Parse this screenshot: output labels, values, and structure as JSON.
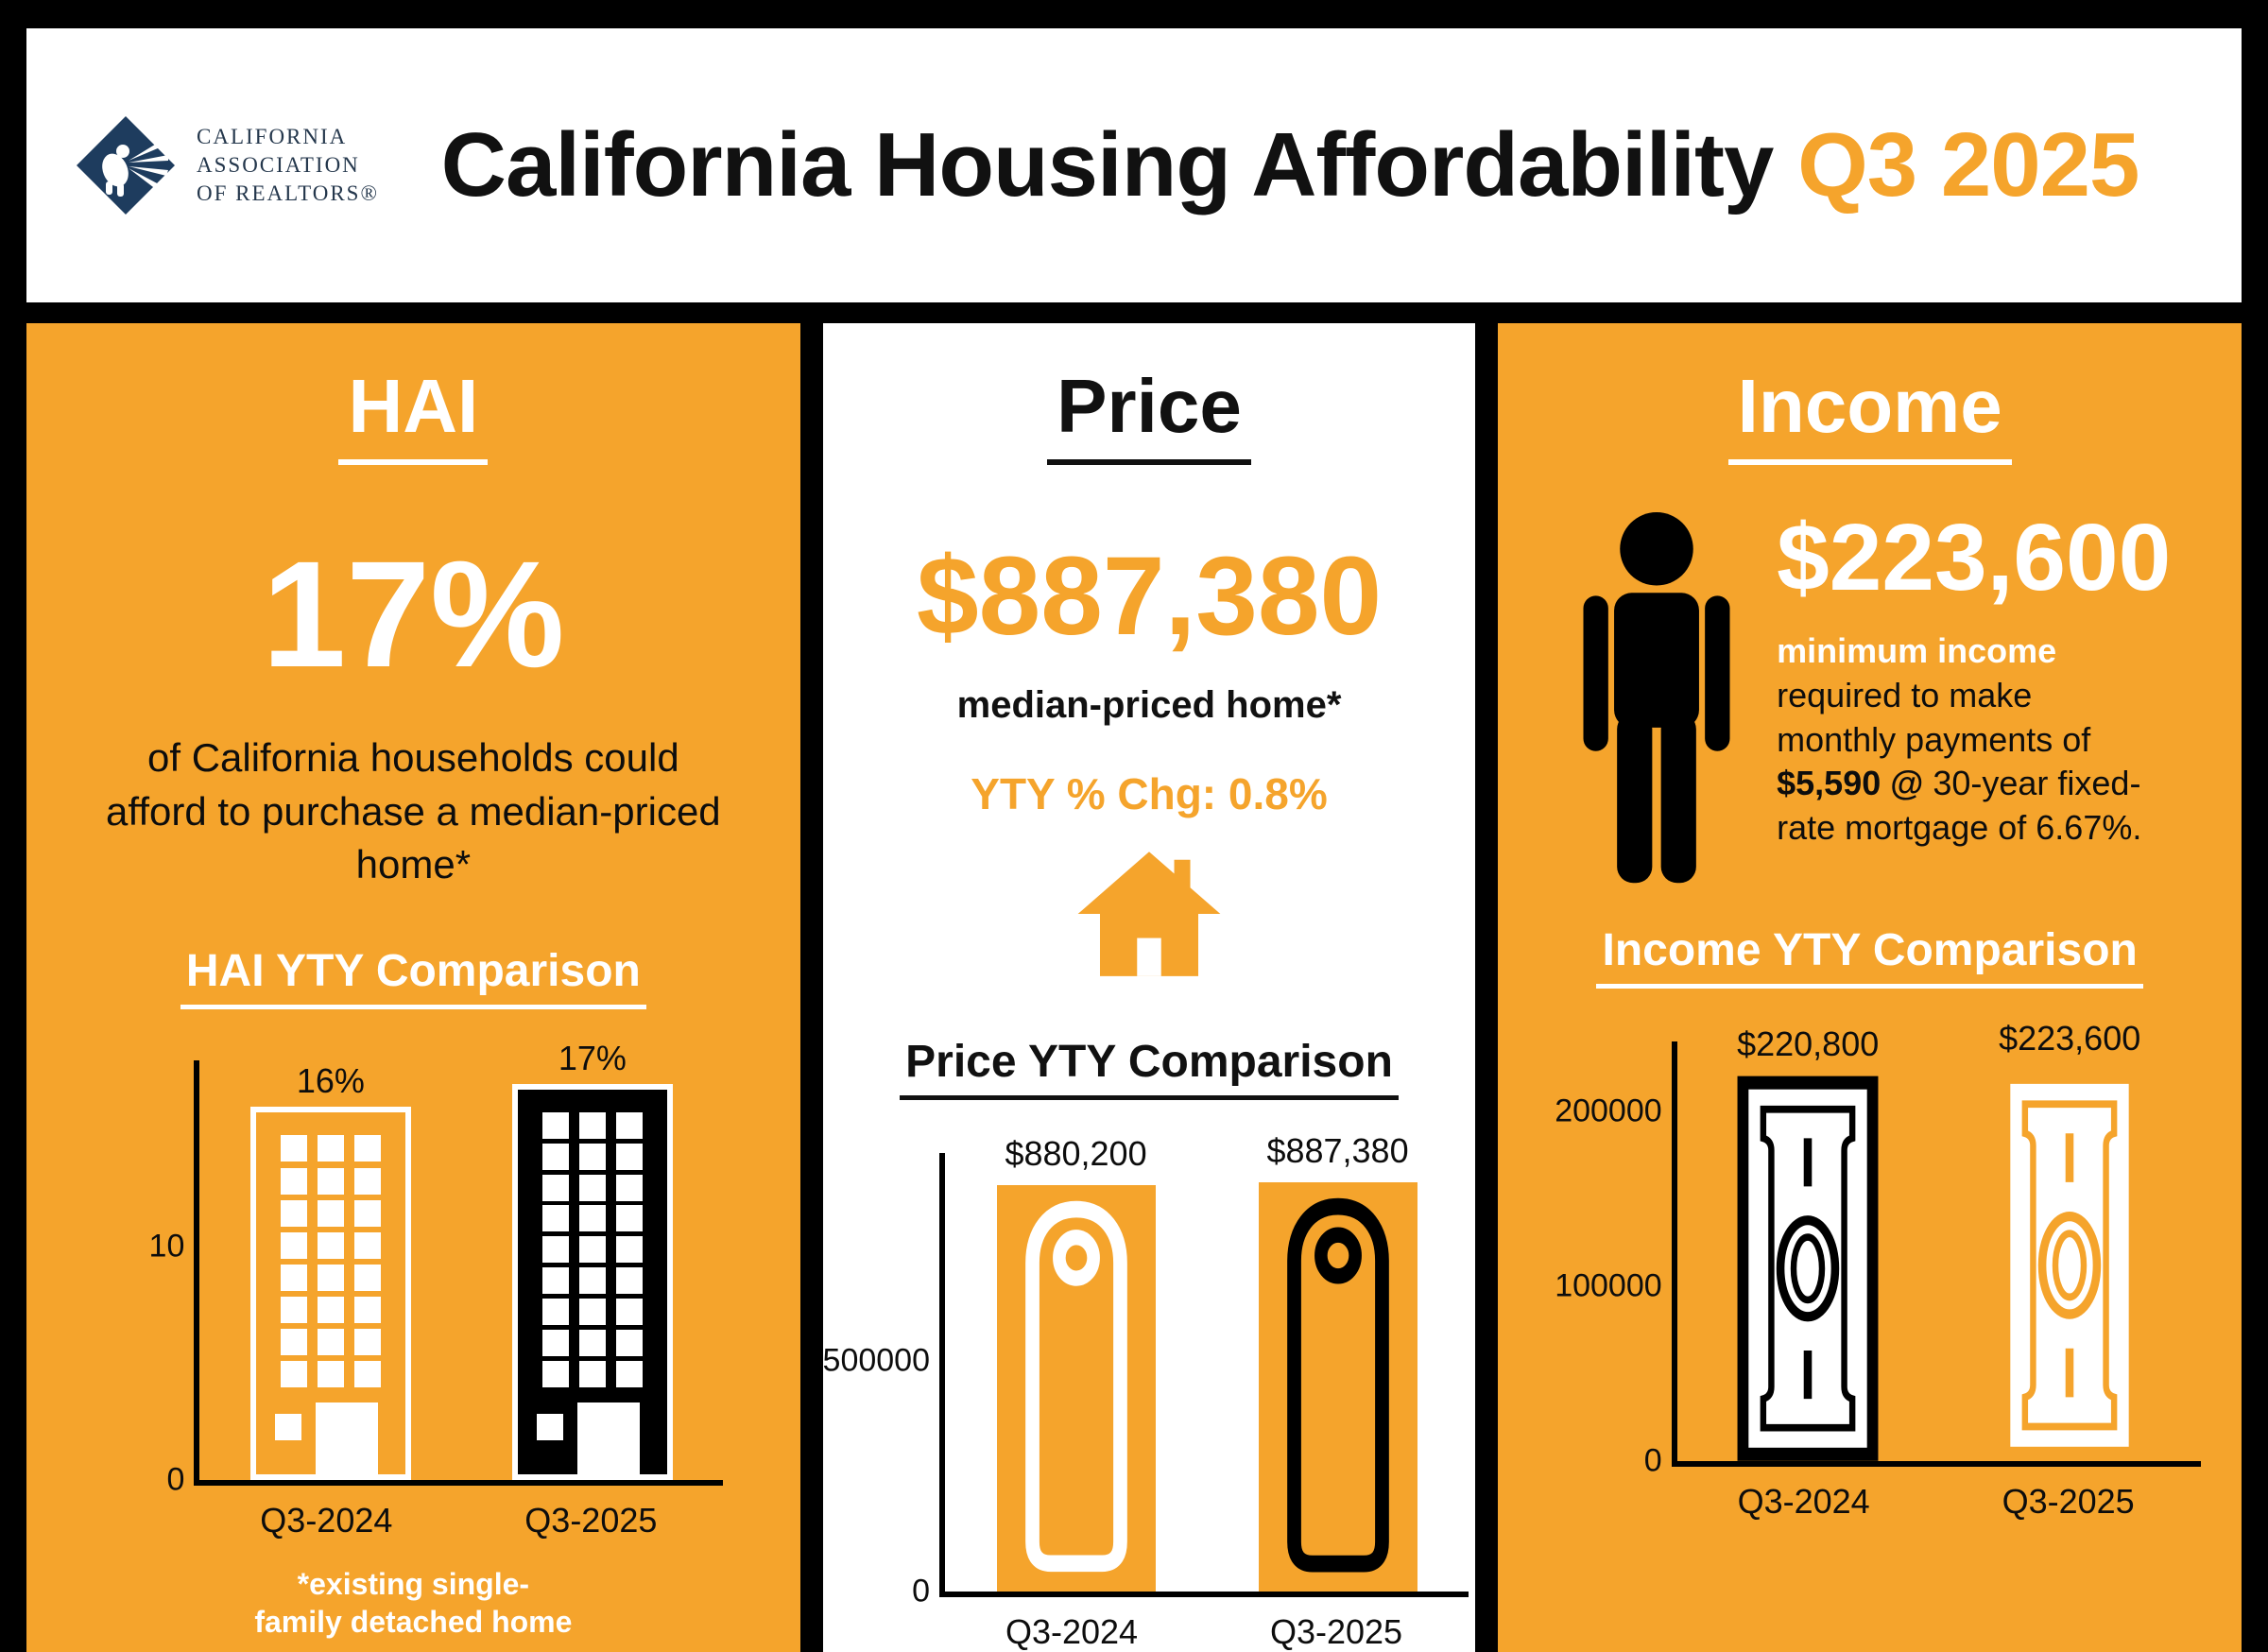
{
  "colors": {
    "orange": "#F5A42C",
    "navy": "#1E3C5E",
    "black": "#000000",
    "white": "#FFFFFF"
  },
  "header": {
    "logo_line1": "CALIFORNIA",
    "logo_line2": "ASSOCIATION",
    "logo_line3": "OF REALTORS®",
    "title": "California Housing Affordability",
    "title_highlight": "Q3 2025"
  },
  "panels": {
    "hai": {
      "heading": "HAI",
      "value": "17%",
      "description": "of California households could afford to purchase a median-priced home*",
      "footnote_line1": "*existing single-",
      "footnote_line2": "family detached home"
    },
    "price": {
      "heading": "Price",
      "value": "$887,380",
      "subtitle": "median-priced home*",
      "yty_change": "YTY % Chg: 0.8%"
    },
    "income": {
      "heading": "Income",
      "value": "$223,600",
      "desc_seg1": "minimum income",
      "desc_seg2": "required to make monthly payments of ",
      "desc_seg3": "$5,590 @",
      "desc_seg4": " 30-year fixed-rate mortgage of 6.67%."
    }
  },
  "chart_data": [
    {
      "type": "bar",
      "title": "HAI YTY Comparison",
      "categories": [
        "Q3-2024",
        "Q3-2025"
      ],
      "values": [
        16,
        17
      ],
      "value_labels": [
        "16%",
        "17%"
      ],
      "yticks": [
        0,
        10
      ],
      "ylim": [
        0,
        18
      ],
      "xlabel": "",
      "ylabel": "",
      "grid": false,
      "legend": "none",
      "bar_style": "building icons: Q3-2024 orange with white windows, Q3-2025 black with white windows"
    },
    {
      "type": "bar",
      "title": "Price YTY Comparison",
      "categories": [
        "Q3-2024",
        "Q3-2025"
      ],
      "values": [
        880200,
        887380
      ],
      "value_labels": [
        "$880,200",
        "$887,380"
      ],
      "yticks": [
        0,
        500000
      ],
      "ylim": [
        0,
        950000
      ],
      "xlabel": "",
      "ylabel": "",
      "grid": false,
      "legend": "none",
      "bar_style": "orange bars containing price-tag outline icons: Q3-2024 white tag, Q3-2025 black tag"
    },
    {
      "type": "bar",
      "title": "Income YTY Comparison",
      "categories": [
        "Q3-2024",
        "Q3-2025"
      ],
      "values": [
        220800,
        223600
      ],
      "value_labels": [
        "$220,800",
        "$223,600"
      ],
      "yticks": [
        0,
        100000,
        200000
      ],
      "ylim": [
        0,
        240000
      ],
      "xlabel": "",
      "ylabel": "",
      "grid": false,
      "legend": "none",
      "bar_style": "vertical dollar-bill icons: Q3-2024 black outline, Q3-2025 orange outline"
    }
  ]
}
